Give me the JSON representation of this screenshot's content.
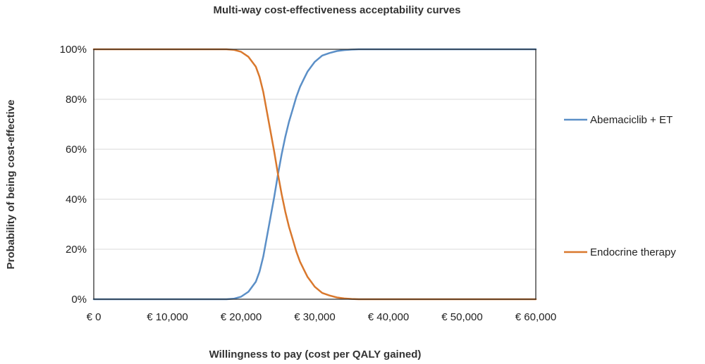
{
  "chart_data": {
    "type": "line",
    "title": "Multi-way cost-effectiveness acceptability curves",
    "xlabel": "Willingness to pay (cost per QALY gained)",
    "ylabel": "Probability of being cost-effective",
    "xlim": [
      0,
      60000
    ],
    "ylim": [
      0,
      1
    ],
    "x_ticks": [
      0,
      10000,
      20000,
      30000,
      40000,
      50000,
      60000
    ],
    "x_tick_labels": [
      "€ 0",
      "€ 10,000",
      "€ 20,000",
      "€ 30,000",
      "€ 40,000",
      "€ 50,000",
      "€ 60,000"
    ],
    "y_ticks": [
      0,
      0.2,
      0.4,
      0.6,
      0.8,
      1.0
    ],
    "y_tick_labels": [
      "0%",
      "20%",
      "40%",
      "60%",
      "80%",
      "100%"
    ],
    "grid": "horizontal",
    "legend_position": "right",
    "x": [
      0,
      5000,
      10000,
      15000,
      18000,
      19000,
      20000,
      21000,
      22000,
      22500,
      23000,
      23500,
      24000,
      24500,
      25000,
      25500,
      26000,
      26500,
      27000,
      27500,
      28000,
      28500,
      29000,
      29500,
      30000,
      31000,
      32000,
      33000,
      34000,
      35000,
      36000,
      37000,
      40000,
      50000,
      60000
    ],
    "series": [
      {
        "name": "Abemaciclib + ET",
        "color": "#5b8fc7",
        "values": [
          0,
          0,
          0,
          0,
          0,
          0.002,
          0.01,
          0.03,
          0.07,
          0.11,
          0.17,
          0.25,
          0.33,
          0.41,
          0.5,
          0.58,
          0.65,
          0.71,
          0.76,
          0.81,
          0.85,
          0.88,
          0.91,
          0.93,
          0.95,
          0.975,
          0.985,
          0.993,
          0.997,
          0.999,
          1,
          1,
          1,
          1,
          1
        ]
      },
      {
        "name": "Endocrine therapy",
        "color": "#d9782d",
        "values": [
          1,
          1,
          1,
          1,
          1,
          0.998,
          0.99,
          0.97,
          0.93,
          0.89,
          0.83,
          0.75,
          0.67,
          0.59,
          0.5,
          0.42,
          0.35,
          0.29,
          0.24,
          0.19,
          0.15,
          0.12,
          0.09,
          0.07,
          0.05,
          0.025,
          0.015,
          0.007,
          0.003,
          0.001,
          0,
          0,
          0,
          0,
          0
        ]
      }
    ]
  }
}
